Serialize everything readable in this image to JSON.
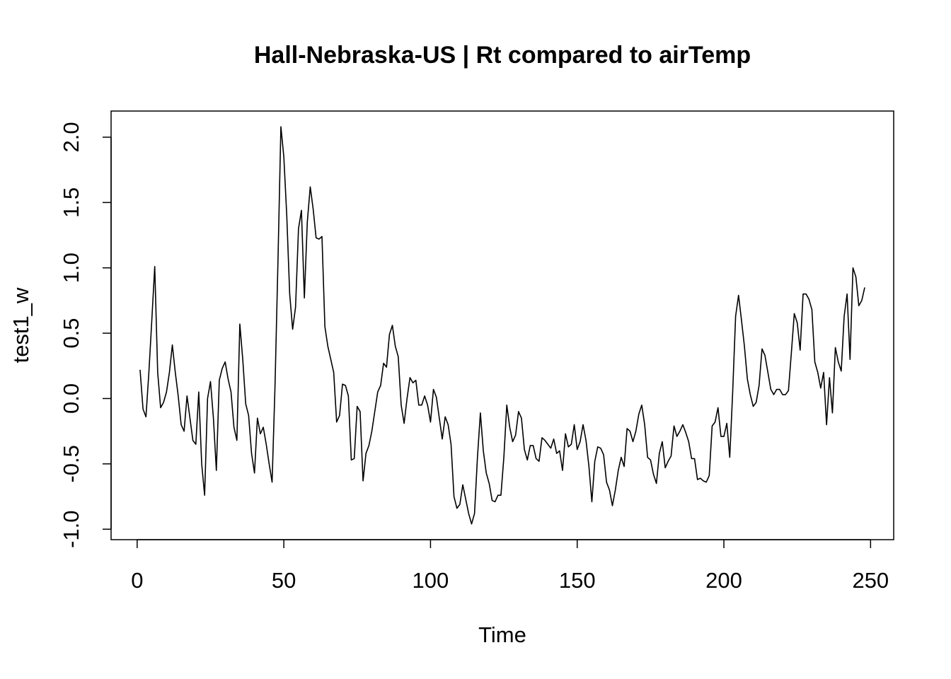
{
  "chart_data": {
    "type": "line",
    "title": "Hall-Nebraska-US | Rt compared to airTemp",
    "x_label": "Time",
    "y_label": "test1_w",
    "x": [
      1,
      2,
      3,
      4,
      5,
      6,
      7,
      8,
      9,
      10,
      11,
      12,
      13,
      14,
      15,
      16,
      17,
      18,
      19,
      20,
      21,
      22,
      23,
      24,
      25,
      26,
      27,
      28,
      29,
      30,
      31,
      32,
      33,
      34,
      35,
      36,
      37,
      38,
      39,
      40,
      41,
      42,
      43,
      44,
      45,
      46,
      47,
      48,
      49,
      50,
      51,
      52,
      53,
      54,
      55,
      56,
      57,
      58,
      59,
      60,
      61,
      62,
      63,
      64,
      65,
      66,
      67,
      68,
      69,
      70,
      71,
      72,
      73,
      74,
      75,
      76,
      77,
      78,
      79,
      80,
      81,
      82,
      83,
      84,
      85,
      86,
      87,
      88,
      89,
      90,
      91,
      92,
      93,
      94,
      95,
      96,
      97,
      98,
      99,
      100,
      101,
      102,
      103,
      104,
      105,
      106,
      107,
      108,
      109,
      110,
      111,
      112,
      113,
      114,
      115,
      116,
      117,
      118,
      119,
      120,
      121,
      122,
      123,
      124,
      125,
      126,
      127,
      128,
      129,
      130,
      131,
      132,
      133,
      134,
      135,
      136,
      137,
      138,
      139,
      140,
      141,
      142,
      143,
      144,
      145,
      146,
      147,
      148,
      149,
      150,
      151,
      152,
      153,
      154,
      155,
      156,
      157,
      158,
      159,
      160,
      161,
      162,
      163,
      164,
      165,
      166,
      167,
      168,
      169,
      170,
      171,
      172,
      173,
      174,
      175,
      176,
      177,
      178,
      179,
      180,
      181,
      182,
      183,
      184,
      185,
      186,
      187,
      188,
      189,
      190,
      191,
      192,
      193,
      194,
      195,
      196,
      197,
      198,
      199,
      200,
      201,
      202,
      203,
      204,
      205,
      206,
      207,
      208,
      209,
      210,
      211,
      212,
      213,
      214,
      215,
      216,
      217,
      218,
      219,
      220,
      221,
      222,
      223,
      224,
      225,
      226,
      227,
      228,
      229,
      230,
      231,
      232,
      233,
      234,
      235,
      236,
      237,
      238,
      239,
      240,
      241,
      242,
      243,
      244,
      245,
      246,
      247,
      248
    ],
    "values": [
      0.22,
      -0.08,
      -0.14,
      0.2,
      0.6,
      1.01,
      0.2,
      -0.07,
      -0.03,
      0.05,
      0.2,
      0.41,
      0.2,
      0.02,
      -0.2,
      -0.25,
      0.02,
      -0.15,
      -0.32,
      -0.35,
      0.05,
      -0.5,
      -0.74,
      0.0,
      0.13,
      -0.15,
      -0.55,
      0.14,
      0.23,
      0.28,
      0.15,
      0.05,
      -0.22,
      -0.32,
      0.57,
      0.3,
      -0.04,
      -0.13,
      -0.42,
      -0.57,
      -0.15,
      -0.27,
      -0.22,
      -0.35,
      -0.5,
      -0.64,
      0.1,
      1.05,
      2.08,
      1.85,
      1.4,
      0.8,
      0.53,
      0.7,
      1.3,
      1.44,
      0.77,
      1.35,
      1.62,
      1.45,
      1.23,
      1.22,
      1.24,
      0.55,
      0.4,
      0.3,
      0.2,
      -0.18,
      -0.13,
      0.11,
      0.1,
      0.02,
      -0.47,
      -0.46,
      -0.06,
      -0.1,
      -0.63,
      -0.42,
      -0.36,
      -0.25,
      -0.1,
      0.05,
      0.1,
      0.27,
      0.24,
      0.49,
      0.56,
      0.4,
      0.32,
      -0.05,
      -0.19,
      0.0,
      0.16,
      0.12,
      0.14,
      -0.05,
      -0.05,
      0.02,
      -0.05,
      -0.18,
      0.07,
      0.01,
      -0.15,
      -0.31,
      -0.14,
      -0.2,
      -0.35,
      -0.75,
      -0.84,
      -0.81,
      -0.66,
      -0.77,
      -0.88,
      -0.96,
      -0.88,
      -0.45,
      -0.11,
      -0.4,
      -0.57,
      -0.65,
      -0.78,
      -0.79,
      -0.74,
      -0.74,
      -0.45,
      -0.05,
      -0.22,
      -0.33,
      -0.28,
      -0.1,
      -0.15,
      -0.39,
      -0.47,
      -0.36,
      -0.36,
      -0.46,
      -0.48,
      -0.3,
      -0.32,
      -0.35,
      -0.38,
      -0.31,
      -0.42,
      -0.4,
      -0.55,
      -0.27,
      -0.37,
      -0.35,
      -0.2,
      -0.39,
      -0.33,
      -0.2,
      -0.32,
      -0.52,
      -0.79,
      -0.48,
      -0.37,
      -0.38,
      -0.43,
      -0.64,
      -0.7,
      -0.82,
      -0.7,
      -0.55,
      -0.45,
      -0.52,
      -0.23,
      -0.25,
      -0.33,
      -0.25,
      -0.12,
      -0.05,
      -0.2,
      -0.45,
      -0.47,
      -0.58,
      -0.65,
      -0.42,
      -0.33,
      -0.53,
      -0.48,
      -0.44,
      -0.21,
      -0.29,
      -0.25,
      -0.2,
      -0.26,
      -0.33,
      -0.46,
      -0.46,
      -0.62,
      -0.61,
      -0.63,
      -0.64,
      -0.59,
      -0.21,
      -0.18,
      -0.07,
      -0.29,
      -0.29,
      -0.19,
      -0.45,
      0.05,
      0.63,
      0.79,
      0.6,
      0.4,
      0.15,
      0.03,
      -0.06,
      -0.03,
      0.1,
      0.38,
      0.33,
      0.2,
      0.07,
      0.03,
      0.07,
      0.07,
      0.03,
      0.03,
      0.06,
      0.35,
      0.65,
      0.58,
      0.37,
      0.8,
      0.8,
      0.76,
      0.68,
      0.28,
      0.2,
      0.08,
      0.2,
      -0.2,
      0.16,
      -0.11,
      0.39,
      0.28,
      0.21,
      0.63,
      0.8,
      0.3,
      1.0,
      0.93,
      0.71,
      0.75,
      0.85
    ],
    "color": "#000000",
    "xlim": [
      -8.88,
      257.88
    ],
    "xticks": [
      0,
      50,
      100,
      150,
      200,
      250
    ],
    "ylim": [
      -1.08,
      2.2
    ],
    "yticks": [
      {
        "value": -1,
        "label": "-1.0"
      },
      -0.5,
      {
        "value": 0,
        "label": "0.0"
      },
      0.5,
      {
        "value": 1,
        "label": "1.0"
      },
      1.5,
      {
        "value": 2,
        "label": "2.0"
      }
    ],
    "grid": false
  }
}
